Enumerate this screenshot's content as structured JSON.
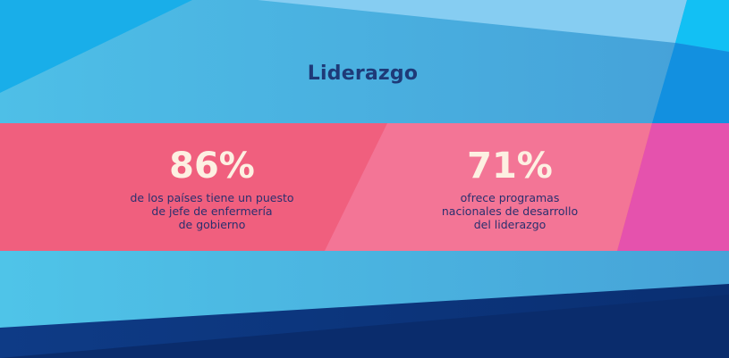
{
  "title": "Liderazgo",
  "stats": [
    {
      "value": "86%",
      "description": "de los países tiene un puesto\nde jefe de enfermería\nde gobierno"
    },
    {
      "value": "71%",
      "description": "ofrece programas\nnacionales de desarrollo\ndel liderazgo"
    }
  ],
  "colors": {
    "sky_blue": "#4db7e6",
    "light_blue": "#7ecbf0",
    "bright_cyan": "#17b6ef",
    "navy": "#0e3a86",
    "coral": "#f05f7e",
    "pink": "#f37596",
    "magenta": "#e552ad",
    "title_text": "#1e3a78",
    "stat_text": "#fdf0e2",
    "desc_text": "#2a2f6e"
  }
}
